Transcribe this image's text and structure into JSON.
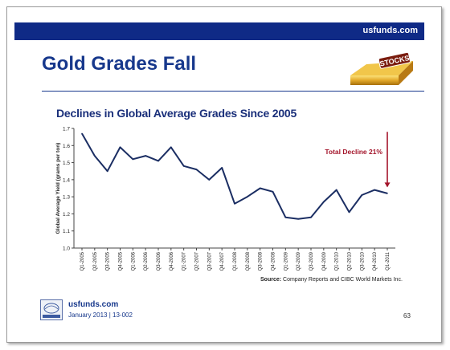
{
  "header": {
    "site": "usfunds.com"
  },
  "slide": {
    "title": "Gold Grades Fall",
    "logo_text": "STOCKS",
    "chart_title": "Declines in Global Average Grades Since 2005",
    "source_label": "Source:",
    "source_text": "Company Reports and CIBC World Markets Inc."
  },
  "footer": {
    "site": "usfunds.com",
    "date": "January 2013 | 13-002",
    "page": "63"
  },
  "colors": {
    "brand": "#0f2a86",
    "line": "#1b2e63",
    "annotation": "#a3142a"
  },
  "chart_data": {
    "type": "line",
    "title": "Declines in Global Average Grades Since 2005",
    "xlabel": "",
    "ylabel": "Global Average Yield (grams per ton)",
    "ylim": [
      1.0,
      1.7
    ],
    "yticks": [
      "1.0",
      "1.1",
      "1.2",
      "1.3",
      "1.4",
      "1.5",
      "1.6",
      "1.7"
    ],
    "grid": false,
    "categories": [
      "Q1-2005",
      "Q2-2005",
      "Q3-2005",
      "Q4-2005",
      "Q1-2006",
      "Q2-2006",
      "Q3-2006",
      "Q4-2006",
      "Q1-2007",
      "Q2-2007",
      "Q3-2007",
      "Q4-2007",
      "Q1-2008",
      "Q2-2008",
      "Q3-2008",
      "Q4-2008",
      "Q1-2009",
      "Q2-2009",
      "Q3-2009",
      "Q4-2009",
      "Q1-2010",
      "Q2-2010",
      "Q3-2010",
      "Q4-2010",
      "Q1-2011"
    ],
    "values": [
      1.67,
      1.54,
      1.45,
      1.59,
      1.52,
      1.54,
      1.51,
      1.59,
      1.48,
      1.46,
      1.4,
      1.47,
      1.26,
      1.3,
      1.35,
      1.33,
      1.18,
      1.17,
      1.18,
      1.27,
      1.34,
      1.21,
      1.31,
      1.34,
      1.32
    ],
    "annotation": "Total Decline 21%"
  }
}
